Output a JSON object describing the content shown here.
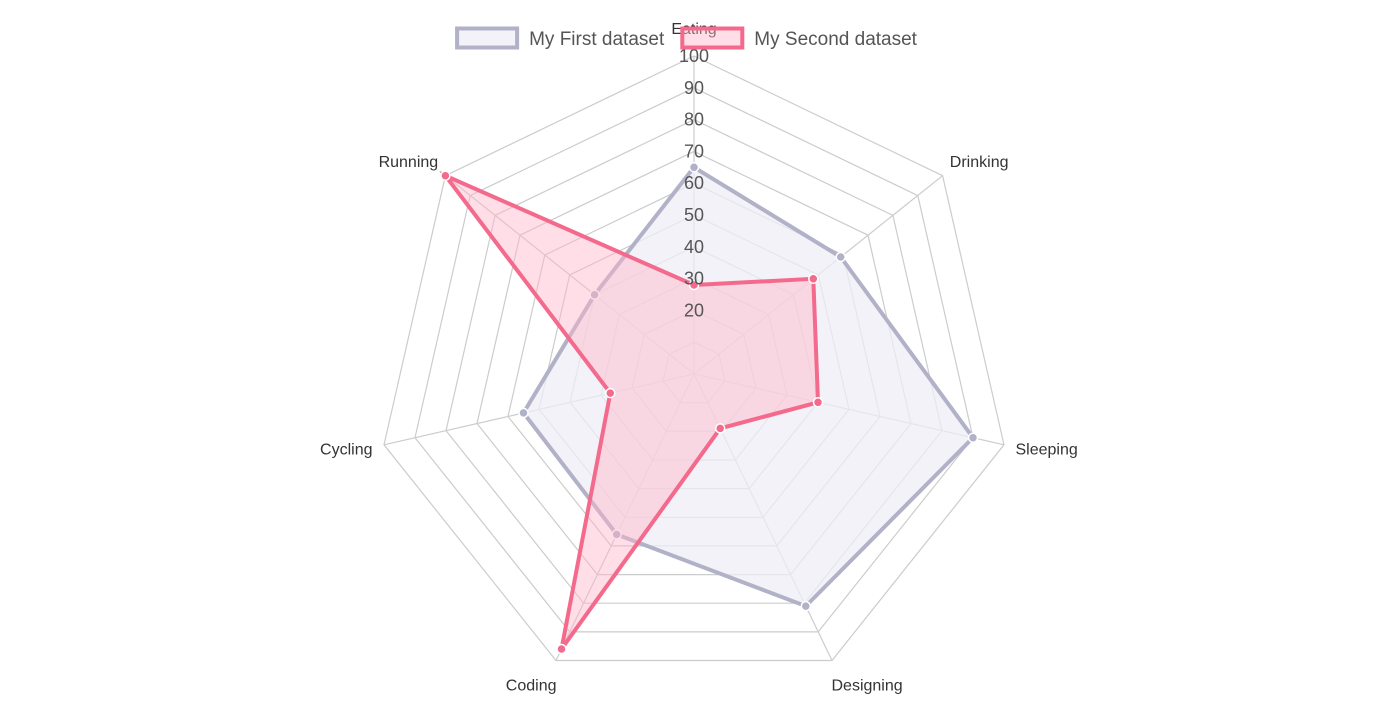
{
  "chart_data": {
    "type": "radar",
    "labels": [
      "Eating",
      "Drinking",
      "Sleeping",
      "Designing",
      "Coding",
      "Cycling",
      "Running"
    ],
    "r_range": [
      0,
      100
    ],
    "ticks": [
      20,
      30,
      40,
      50,
      60,
      70,
      80,
      90,
      100
    ],
    "grid": true,
    "legend_position": "top",
    "series": [
      {
        "name": "My First dataset",
        "values": [
          65,
          59,
          90,
          81,
          56,
          55,
          40
        ],
        "border_color": "#b1b1c8",
        "fill_color": "#efeef5",
        "fill_opacity": 0.75
      },
      {
        "name": "My Second dataset",
        "values": [
          28,
          48,
          40,
          19,
          96,
          27,
          100
        ],
        "border_color": "#f36a8c",
        "fill_color": "#ffb6c9",
        "fill_opacity": 0.45
      }
    ]
  }
}
